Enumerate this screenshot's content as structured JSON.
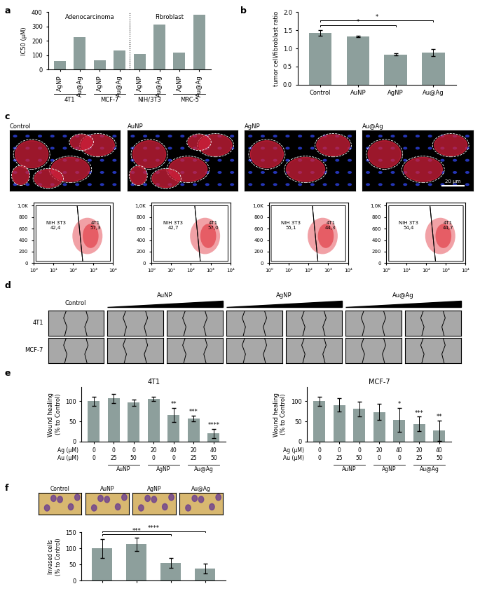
{
  "chart_data": [
    {
      "label": "a",
      "type": "bar",
      "y_label": "IC50 (µM)",
      "section_labels": [
        "Adenocarcinoma",
        "Fibroblast"
      ],
      "categories": [
        "AgNP",
        "Au@Ag",
        "AgNP",
        "Au@Ag",
        "AgNP",
        "Au@Ag",
        "AgNP",
        "Au@Ag"
      ],
      "group_labels": [
        "4T1",
        "MCF-7",
        "NIH/3T3",
        "MRC-5"
      ],
      "values": [
        58,
        228,
        65,
        133,
        108,
        315,
        120,
        380
      ],
      "color": "#8d9f9c",
      "ylim": [
        0,
        400
      ],
      "yticks": [
        0,
        100,
        200,
        300,
        400
      ]
    },
    {
      "label": "b",
      "type": "bar",
      "y_label": "tumor cell/fibroblast ratio",
      "categories": [
        "Control",
        "AuNP",
        "AgNP",
        "Au@Ag"
      ],
      "values": [
        1.42,
        1.33,
        0.83,
        0.89
      ],
      "errors": [
        0.08,
        0.02,
        0.03,
        0.1
      ],
      "significance": [
        {
          "pair": [
            "Control",
            "AgNP"
          ],
          "text": "*"
        },
        {
          "pair": [
            "Control",
            "Au@Ag"
          ],
          "text": "*"
        }
      ],
      "color": "#8d9f9c",
      "ylim": [
        0,
        2
      ],
      "yticks": [
        {
          "value": 0,
          "label": "0.0"
        },
        0.5,
        {
          "value": 1,
          "label": "1.0"
        },
        1.5,
        {
          "value": 2,
          "label": "2.0"
        }
      ]
    },
    {
      "label": "c",
      "type": "image",
      "titles": [
        "Control",
        "AuNP",
        "AgNP",
        "Au@Ag"
      ],
      "scale_bar": "20 µm"
    },
    {
      "type": "scatter",
      "log": "x",
      "plots": [
        {
          "populations": [
            {
              "name": "NIH 3T3",
              "value": 42.4,
              "label": "42,4"
            },
            {
              "name": "4T1",
              "value": 57.3,
              "label": "57,3"
            }
          ]
        },
        {
          "populations": [
            {
              "name": "NIH 3T3",
              "value": 42.7,
              "label": "42,7"
            },
            {
              "name": "4T1",
              "value": 57.0,
              "label": "57,0"
            }
          ]
        },
        {
          "populations": [
            {
              "name": "NIH 3T3",
              "value": 55.1,
              "label": "55,1"
            },
            {
              "name": "4T1",
              "value": 44.3,
              "label": "44,3"
            }
          ]
        },
        {
          "populations": [
            {
              "name": "NIH 3T3",
              "value": 54.4,
              "label": "54,4"
            },
            {
              "name": "4T1",
              "value": 44.7,
              "label": "44,7"
            }
          ]
        }
      ],
      "xlim": [
        1,
        10000
      ],
      "xticks": [
        {
          "value": 1,
          "label": "10⁰"
        },
        {
          "value": 10,
          "label": "10¹"
        },
        {
          "value": 100,
          "label": "10²"
        },
        {
          "value": 1000,
          "label": "10³"
        },
        {
          "value": 10000,
          "label": "10⁴"
        }
      ],
      "ylim": [
        0,
        1050
      ],
      "yticks": [
        0,
        200,
        400,
        600,
        800,
        {
          "value": 1000,
          "label": "1,0K"
        }
      ]
    },
    {
      "label": "d",
      "type": "image_grid",
      "columns": [
        "Control",
        "AuNP",
        null,
        "AgNP",
        null,
        "Au@Ag",
        null
      ],
      "rows": [
        "4T1",
        "MCF-7"
      ]
    },
    {
      "label": "e",
      "type": "bar",
      "title": "4T1",
      "y_label": "Wound healing\n(% to Control)",
      "x_table": [
        {
          "name": "Ag (µM)",
          "values": [
            0,
            0,
            0,
            20,
            40,
            20,
            40
          ]
        },
        {
          "name": "Au (µM)",
          "values": [
            0,
            25,
            50,
            0,
            0,
            25,
            50
          ]
        }
      ],
      "group_labels": [
        null,
        "AuNP",
        null,
        "AgNP",
        null,
        "Au@Ag",
        null
      ],
      "values": [
        100,
        107,
        97,
        106,
        66,
        58,
        20
      ],
      "errors": [
        11,
        12,
        8,
        6,
        18,
        7,
        12
      ],
      "significance_labels": [
        null,
        null,
        null,
        null,
        "**",
        "***",
        "****"
      ],
      "color": "#8d9f9c",
      "ylim": [
        0,
        135
      ],
      "yticks": [
        0,
        50,
        100
      ]
    },
    {
      "type": "bar",
      "title": "MCF-7",
      "y_label": "Wound healing\n(% to Control)",
      "x_table": [
        {
          "name": "Ag (µM)",
          "values": [
            0,
            0,
            0,
            20,
            40,
            20,
            40
          ]
        },
        {
          "name": "Au (µM)",
          "values": [
            0,
            25,
            50,
            0,
            0,
            25,
            50
          ]
        }
      ],
      "group_labels": [
        null,
        "AuNP",
        null,
        "AgNP",
        null,
        "Au@Ag",
        null
      ],
      "values": [
        100,
        91,
        81,
        73,
        54,
        44,
        27
      ],
      "errors": [
        12,
        17,
        18,
        20,
        30,
        18,
        25
      ],
      "significance_labels": [
        null,
        null,
        null,
        null,
        "*",
        "***",
        "**"
      ],
      "color": "#8d9f9c",
      "ylim": [
        0,
        135
      ],
      "yticks": [
        0,
        50,
        100
      ]
    },
    {
      "label": "f",
      "type": "bar",
      "y_label": "Invased cells\n(% to Control)",
      "categories": [
        "Control",
        "AuNP",
        "AgNP",
        "Au@Ag"
      ],
      "tick_labels": "y",
      "values": [
        100,
        113,
        55,
        38
      ],
      "errors": [
        30,
        20,
        15,
        16
      ],
      "significance": [
        {
          "pair": [
            "Control",
            "AgNP"
          ],
          "text": "***"
        },
        {
          "pair": [
            "Control",
            "Au@Ag"
          ],
          "text": "****"
        }
      ],
      "color": "#8d9f9c",
      "ylim": [
        0,
        150
      ],
      "yticks": [
        0,
        50,
        100,
        150
      ]
    }
  ]
}
